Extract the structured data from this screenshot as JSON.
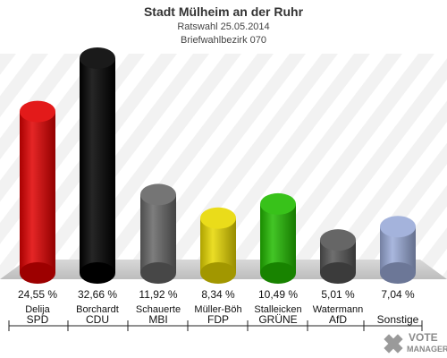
{
  "title": "Stadt Mülheim an der Ruhr",
  "subtitle": "Ratswahl 25.05.2014",
  "subtitle2": "Briefwahlbezirk 070",
  "logo_text": [
    "VOTE",
    "MANAGER"
  ],
  "chart_data": {
    "type": "bar",
    "title": "Stadt Mülheim an der Ruhr",
    "categories": [
      "SPD",
      "CDU",
      "MBI",
      "FDP",
      "GRÜNE",
      "AfD",
      "Sonstige"
    ],
    "candidates": [
      "Delija",
      "Borchardt",
      "Schauerte",
      "Müller-Böh",
      "Stalleicken",
      "Watermann",
      ""
    ],
    "values": [
      24.55,
      32.66,
      11.92,
      8.34,
      10.49,
      5.01,
      7.04
    ],
    "value_labels": [
      "24,55 %",
      "32,66 %",
      "11,92 %",
      "8,34 %",
      "10,49 %",
      "5,01 %",
      "7,04 %"
    ],
    "colors": [
      "#e00000",
      "#000000",
      "#666666",
      "#e8d800",
      "#22bb00",
      "#555555",
      "#9aaad8"
    ],
    "ylim": [
      0,
      35
    ],
    "grid": false,
    "legend": "none"
  }
}
